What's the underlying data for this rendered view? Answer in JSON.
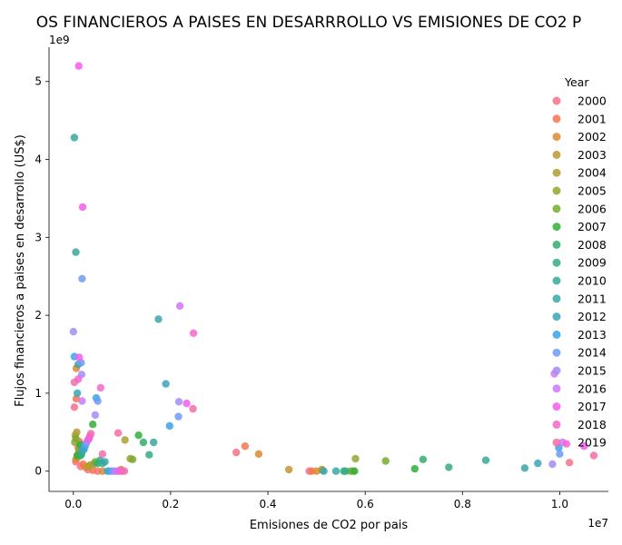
{
  "chart_data": {
    "type": "scatter",
    "title": "OS FINANCIEROS A PAISES EN DESARRROLLO VS EMISIONES DE CO2 P",
    "xlabel": "Emisiones de CO2 por pais",
    "ylabel": "Flujos financieros a paises en desarrollo (US$)",
    "x_offset_label": "1e7",
    "y_offset_label": "1e9",
    "xlim": [
      -500000,
      11000000
    ],
    "ylim": [
      -260000000,
      5440000000
    ],
    "xticks": [
      0,
      2000000,
      4000000,
      6000000,
      8000000,
      10000000
    ],
    "xtick_labels": [
      "0.0",
      "0.2",
      "0.4",
      "0.6",
      "0.8",
      "1.0"
    ],
    "yticks": [
      0,
      1000000000,
      2000000000,
      3000000000,
      4000000000,
      5000000000
    ],
    "ytick_labels": [
      "0",
      "1",
      "2",
      "3",
      "4",
      "5"
    ],
    "grid": false,
    "legend": {
      "title": "Year",
      "placement": "right",
      "entries": [
        {
          "label": "2000",
          "color": "#f77189"
        },
        {
          "label": "2001",
          "color": "#f7754f"
        },
        {
          "label": "2002",
          "color": "#dd8a30"
        },
        {
          "label": "2003",
          "color": "#c39532"
        },
        {
          "label": "2004",
          "color": "#ae9d31"
        },
        {
          "label": "2005",
          "color": "#97a431"
        },
        {
          "label": "2006",
          "color": "#77ab31"
        },
        {
          "label": "2007",
          "color": "#33b039"
        },
        {
          "label": "2008",
          "color": "#35ad6c"
        },
        {
          "label": "2009",
          "color": "#36ab86"
        },
        {
          "label": "2010",
          "color": "#37a999"
        },
        {
          "label": "2011",
          "color": "#38a7a9"
        },
        {
          "label": "2012",
          "color": "#39a6b8"
        },
        {
          "label": "2013",
          "color": "#3ba3ec"
        },
        {
          "label": "2014",
          "color": "#6e9bf4"
        },
        {
          "label": "2015",
          "color": "#a48cf4"
        },
        {
          "label": "2016",
          "color": "#cc79f4"
        },
        {
          "label": "2017",
          "color": "#f45deb"
        },
        {
          "label": "2018",
          "color": "#f565cc"
        },
        {
          "label": "2019",
          "color": "#f66bad"
        }
      ]
    },
    "series": [
      {
        "name": "2000",
        "points": [
          [
            3350000,
            240000000
          ],
          [
            50000,
            120000000
          ],
          [
            150000,
            60000000
          ],
          [
            300000,
            20000000
          ],
          [
            500000,
            0
          ],
          [
            4850000,
            0
          ],
          [
            20000,
            820000000
          ],
          [
            100000,
            300000000
          ],
          [
            10200000,
            110000000
          ]
        ]
      },
      {
        "name": "2001",
        "points": [
          [
            3530000,
            320000000
          ],
          [
            80000,
            200000000
          ],
          [
            200000,
            90000000
          ],
          [
            400000,
            10000000
          ],
          [
            4900000,
            0
          ],
          [
            60000,
            930000000
          ],
          [
            120000,
            380000000
          ]
        ]
      },
      {
        "name": "2002",
        "points": [
          [
            3810000,
            220000000
          ],
          [
            50000,
            150000000
          ],
          [
            250000,
            50000000
          ],
          [
            600000,
            0
          ],
          [
            5000000,
            0
          ],
          [
            60000,
            1320000000
          ],
          [
            150000,
            280000000
          ]
        ]
      },
      {
        "name": "2003",
        "points": [
          [
            4430000,
            20000000
          ],
          [
            90000,
            180000000
          ],
          [
            300000,
            60000000
          ],
          [
            980000,
            20000000
          ],
          [
            5120000,
            10000000
          ],
          [
            40000,
            460000000
          ]
        ]
      },
      {
        "name": "2004",
        "points": [
          [
            5110000,
            20000000
          ],
          [
            100000,
            220000000
          ],
          [
            350000,
            80000000
          ],
          [
            1060000,
            400000000
          ],
          [
            5750000,
            0
          ],
          [
            70000,
            500000000
          ]
        ]
      },
      {
        "name": "2005",
        "points": [
          [
            5800000,
            160000000
          ],
          [
            120000,
            260000000
          ],
          [
            420000,
            90000000
          ],
          [
            1170000,
            160000000
          ],
          [
            30000,
            370000000
          ]
        ]
      },
      {
        "name": "2006",
        "points": [
          [
            6420000,
            130000000
          ],
          [
            130000,
            300000000
          ],
          [
            450000,
            120000000
          ],
          [
            1220000,
            150000000
          ],
          [
            50000,
            420000000
          ],
          [
            5700000,
            0
          ]
        ]
      },
      {
        "name": "2007",
        "points": [
          [
            7020000,
            30000000
          ],
          [
            140000,
            340000000
          ],
          [
            400000,
            600000000
          ],
          [
            1340000,
            460000000
          ],
          [
            5780000,
            0
          ],
          [
            80000,
            200000000
          ]
        ]
      },
      {
        "name": "2008",
        "points": [
          [
            7190000,
            150000000
          ],
          [
            150000,
            200000000
          ],
          [
            500000,
            100000000
          ],
          [
            1440000,
            370000000
          ],
          [
            5560000,
            0
          ]
        ]
      },
      {
        "name": "2009",
        "points": [
          [
            7720000,
            50000000
          ],
          [
            170000,
            220000000
          ],
          [
            550000,
            140000000
          ],
          [
            1560000,
            210000000
          ],
          [
            5600000,
            0
          ]
        ]
      },
      {
        "name": "2010",
        "points": [
          [
            8480000,
            140000000
          ],
          [
            180000,
            260000000
          ],
          [
            600000,
            100000000
          ],
          [
            1650000,
            370000000
          ],
          [
            20000,
            4280000000
          ],
          [
            50000,
            2810000000
          ]
        ]
      },
      {
        "name": "2011",
        "points": [
          [
            9280000,
            40000000
          ],
          [
            200000,
            300000000
          ],
          [
            650000,
            120000000
          ],
          [
            1750000,
            1950000000
          ],
          [
            100000,
            1370000000
          ],
          [
            5400000,
            0
          ]
        ]
      },
      {
        "name": "2012",
        "points": [
          [
            9550000,
            100000000
          ],
          [
            220000,
            280000000
          ],
          [
            700000,
            0
          ],
          [
            1900000,
            1120000000
          ],
          [
            80000,
            1000000000
          ],
          [
            5150000,
            0
          ]
        ]
      },
      {
        "name": "2013",
        "points": [
          [
            9980000,
            300000000
          ],
          [
            240000,
            320000000
          ],
          [
            750000,
            0
          ],
          [
            1980000,
            580000000
          ],
          [
            470000,
            940000000
          ],
          [
            20000,
            1470000000
          ]
        ]
      },
      {
        "name": "2014",
        "points": [
          [
            10000000,
            220000000
          ],
          [
            260000,
            350000000
          ],
          [
            800000,
            0
          ],
          [
            2160000,
            700000000
          ],
          [
            180000,
            2470000000
          ],
          [
            500000,
            900000000
          ],
          [
            160000,
            1390000000
          ]
        ]
      },
      {
        "name": "2015",
        "points": [
          [
            9850000,
            90000000
          ],
          [
            280000,
            380000000
          ],
          [
            850000,
            0
          ],
          [
            2170000,
            890000000
          ],
          [
            0,
            1790000000
          ],
          [
            450000,
            720000000
          ],
          [
            170000,
            1240000000
          ]
        ]
      },
      {
        "name": "2016",
        "points": [
          [
            9890000,
            1250000000
          ],
          [
            300000,
            400000000
          ],
          [
            900000,
            0
          ],
          [
            2190000,
            2120000000
          ],
          [
            180000,
            900000000
          ],
          [
            10060000,
            370000000
          ]
        ]
      },
      {
        "name": "2017",
        "points": [
          [
            10500000,
            320000000
          ],
          [
            110000,
            5200000000
          ],
          [
            190000,
            3390000000
          ],
          [
            320000,
            420000000
          ],
          [
            950000,
            0
          ],
          [
            2330000,
            870000000
          ],
          [
            120000,
            1460000000
          ]
        ]
      },
      {
        "name": "2018",
        "points": [
          [
            10140000,
            350000000
          ],
          [
            340000,
            450000000
          ],
          [
            1000000,
            0
          ],
          [
            2470000,
            1770000000
          ],
          [
            560000,
            1070000000
          ],
          [
            100000,
            1180000000
          ]
        ]
      },
      {
        "name": "2019",
        "points": [
          [
            10700000,
            200000000
          ],
          [
            360000,
            480000000
          ],
          [
            1050000,
            0
          ],
          [
            2460000,
            800000000
          ],
          [
            600000,
            220000000
          ],
          [
            20000,
            1140000000
          ],
          [
            920000,
            490000000
          ]
        ]
      }
    ]
  }
}
